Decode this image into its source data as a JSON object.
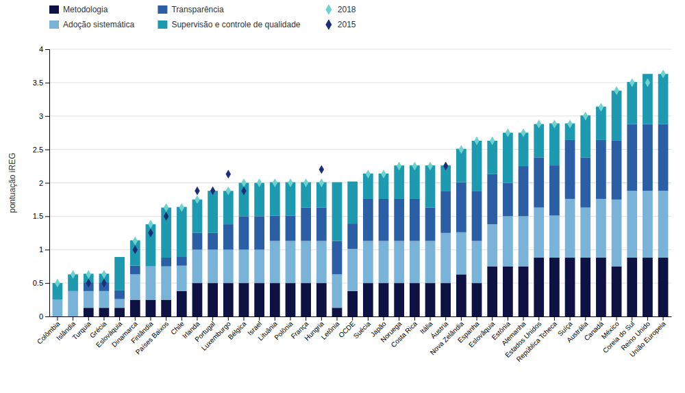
{
  "chart_data": {
    "type": "bar",
    "stacked": true,
    "y_label": "pontuação iREG",
    "categories": [
      "Colômbia",
      "Islândia",
      "Turquia",
      "Grécia",
      "Eslováquia",
      "Dinamarca",
      "Finlândia",
      "Países Baixos",
      "Chile",
      "Irlanda",
      "Portugal",
      "Luxemburgo",
      "Bélgica",
      "Israel",
      "Lituânia",
      "Polônia",
      "França",
      "Hungria",
      "Letônia",
      "OCDE",
      "Suécia",
      "Japão",
      "Noruega",
      "Costa Rica",
      "Itália",
      "Áustria",
      "Nova Zelândia",
      "Espanha",
      "Eslovâquia",
      "Estônia",
      "Alemanha",
      "Estados Unidos",
      "República Tcheca",
      "Suíça",
      "Austrália",
      "Canadá",
      "México",
      "Coreia do Sul",
      "Reino Unido",
      "União Europeia"
    ],
    "series": [
      {
        "name": "Metodologia",
        "color": "#0d1242",
        "values": [
          0.0,
          0.0,
          0.13,
          0.13,
          0.13,
          0.25,
          0.25,
          0.25,
          0.38,
          0.5,
          0.5,
          0.5,
          0.5,
          0.5,
          0.5,
          0.5,
          0.5,
          0.5,
          0.13,
          0.38,
          0.5,
          0.5,
          0.5,
          0.5,
          0.5,
          0.5,
          0.63,
          0.5,
          0.75,
          0.75,
          0.75,
          0.88,
          0.88,
          0.88,
          0.88,
          0.88,
          0.75,
          0.88,
          0.88,
          0.88
        ]
      },
      {
        "name": "Adoção sistemática",
        "color": "#7ab3d8",
        "values": [
          0.25,
          0.38,
          0.25,
          0.25,
          0.13,
          0.38,
          0.5,
          0.5,
          0.38,
          0.5,
          0.5,
          0.5,
          0.5,
          0.5,
          0.63,
          0.63,
          0.63,
          0.63,
          0.5,
          0.63,
          0.63,
          0.63,
          0.63,
          0.63,
          0.63,
          0.75,
          0.63,
          0.63,
          0.63,
          0.75,
          0.75,
          0.75,
          0.63,
          0.88,
          0.75,
          0.88,
          1.0,
          1.0,
          1.0,
          1.0
        ]
      },
      {
        "name": "Transparência",
        "color": "#2a5fa5",
        "values": [
          0.0,
          0.0,
          0.13,
          0.13,
          0.13,
          0.13,
          0.0,
          0.13,
          0.13,
          0.25,
          0.25,
          0.38,
          0.5,
          0.5,
          0.38,
          0.38,
          0.5,
          0.5,
          0.5,
          0.38,
          0.63,
          0.63,
          0.63,
          0.63,
          0.5,
          0.63,
          0.75,
          0.75,
          0.75,
          0.5,
          0.75,
          0.75,
          0.75,
          0.88,
          0.75,
          0.88,
          0.88,
          1.0,
          1.0,
          1.0
        ]
      },
      {
        "name": "Supervisão e controle de qualidade",
        "color": "#1e9ab0",
        "values": [
          0.25,
          0.25,
          0.13,
          0.13,
          0.5,
          0.38,
          0.63,
          0.75,
          0.75,
          0.5,
          0.63,
          0.5,
          0.5,
          0.5,
          0.5,
          0.5,
          0.38,
          0.38,
          0.88,
          0.63,
          0.38,
          0.38,
          0.5,
          0.5,
          0.63,
          0.38,
          0.5,
          0.75,
          0.5,
          0.75,
          0.5,
          0.5,
          0.63,
          0.25,
          0.63,
          0.5,
          0.75,
          0.63,
          0.75,
          0.75
        ]
      },
      {
        "name": "2018",
        "type": "scatter",
        "marker": "diamond",
        "color": "#6dd3ce",
        "values": [
          0.5,
          0.63,
          0.63,
          0.63,
          null,
          1.13,
          1.38,
          1.63,
          1.63,
          1.75,
          1.88,
          1.88,
          2.0,
          2.0,
          2.0,
          2.0,
          2.0,
          2.0,
          null,
          null,
          2.13,
          2.13,
          2.25,
          2.25,
          2.25,
          2.25,
          2.5,
          2.63,
          2.63,
          2.75,
          2.75,
          2.88,
          2.88,
          2.88,
          3.0,
          3.13,
          3.38,
          3.5,
          3.5,
          3.63
        ]
      },
      {
        "name": "2015",
        "type": "scatter",
        "marker": "diamond",
        "color": "#1a2e78",
        "values": [
          null,
          null,
          0.5,
          0.5,
          null,
          1.0,
          1.25,
          1.5,
          null,
          1.88,
          1.88,
          2.13,
          1.88,
          null,
          null,
          null,
          null,
          2.2,
          null,
          null,
          null,
          null,
          null,
          null,
          null,
          2.25,
          null,
          null,
          null,
          null,
          null,
          null,
          null,
          null,
          null,
          null,
          null,
          null,
          null,
          null
        ]
      }
    ],
    "ylim": [
      0,
      4
    ],
    "yticks": [
      0,
      0.5,
      1,
      1.5,
      2,
      2.5,
      3,
      3.5,
      4
    ],
    "grid": true,
    "legend": "top-left"
  }
}
